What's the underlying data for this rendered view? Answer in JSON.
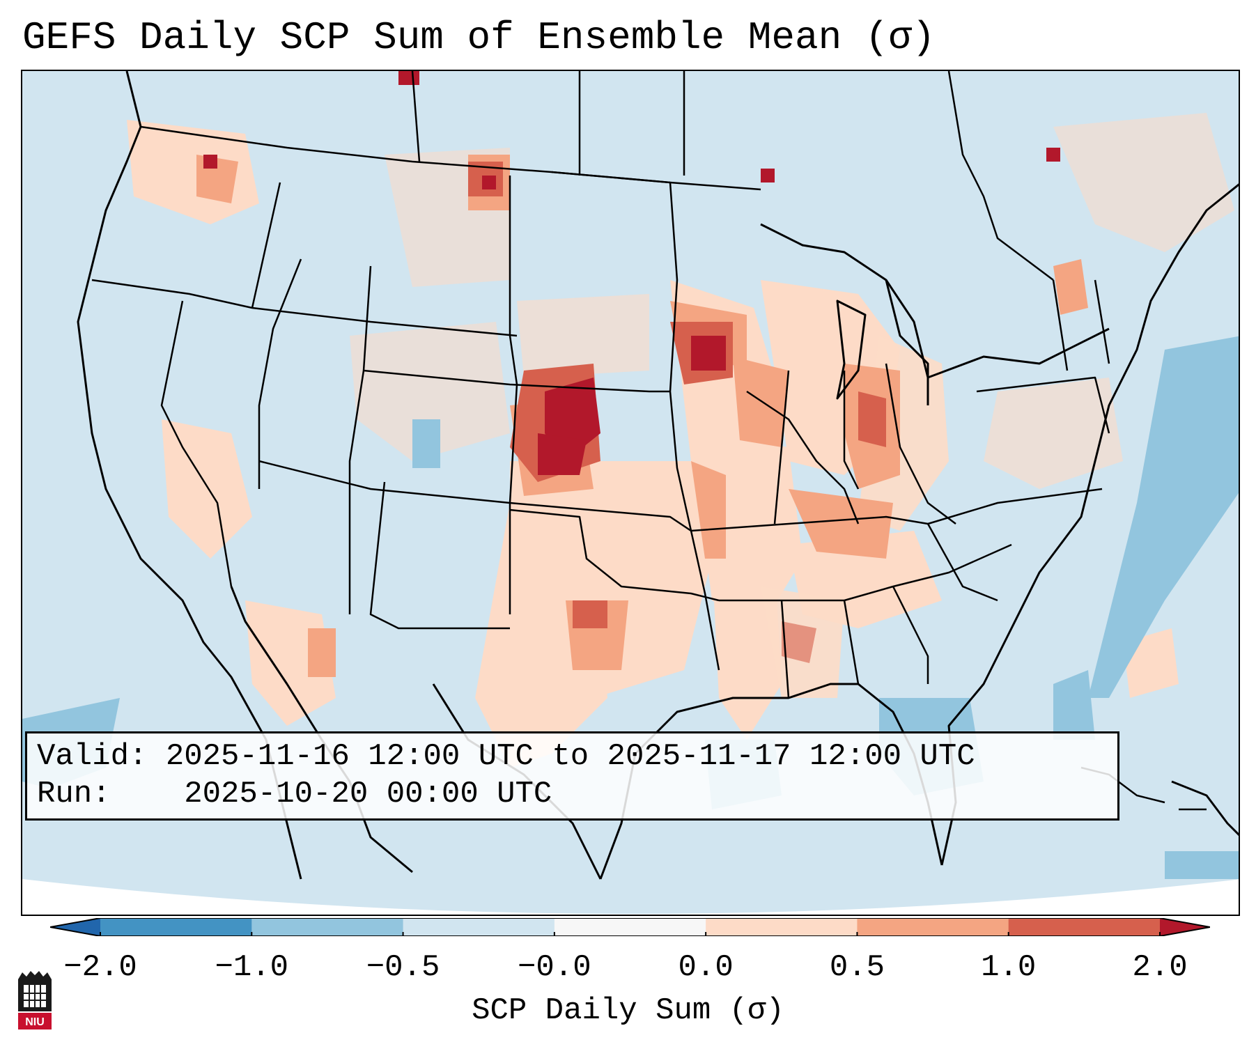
{
  "title": "GEFS Daily SCP Sum of Ensemble Mean (σ)",
  "info": {
    "valid_label": "Valid:",
    "valid_value": "2025-11-16 12:00 UTC to 2025-11-17 12:00 UTC",
    "run_label": "Run:",
    "run_value": "2025-10-20 00:00 UTC"
  },
  "colorbar": {
    "label": "SCP Daily Sum (σ)",
    "ticks": [
      "−2.0",
      "−1.0",
      "−0.5",
      "−0.0",
      "0.0",
      "0.5",
      "1.0",
      "2.0"
    ],
    "bins": [
      {
        "range": "<-2.0",
        "color": "#2166ac"
      },
      {
        "range": "-2.0 to -1.0",
        "color": "#4393c3"
      },
      {
        "range": "-1.0 to -0.5",
        "color": "#92c5de"
      },
      {
        "range": "-0.5 to -0.0",
        "color": "#d1e5f0"
      },
      {
        "range": "-0.0 to 0.0",
        "color": "#f7f7f7"
      },
      {
        "range": "0.0 to 0.5",
        "color": "#fddbc7"
      },
      {
        "range": "0.5 to 1.0",
        "color": "#f4a582"
      },
      {
        "range": "1.0 to 2.0",
        "color": "#d6604d"
      },
      {
        "range": ">2.0",
        "color": "#b2182b"
      }
    ]
  },
  "map": {
    "region": "Contiguous United States",
    "notable_features": [
      "Highest anomaly (>2.0) over central Nebraska / Kansas",
      "Elevated values over Iowa and Mississippi Valley",
      "Negative anomalies offshore Atlantic and Gulf of Mexico"
    ]
  },
  "logo_text": "NIU"
}
